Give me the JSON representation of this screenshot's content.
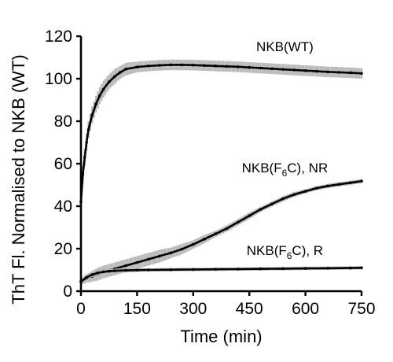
{
  "chart_data": {
    "type": "line",
    "xlabel": "Time (min)",
    "ylabel": "ThT Fl. Normalised to NKB (WT)",
    "xlim": [
      0,
      750
    ],
    "ylim": [
      0,
      120
    ],
    "xticks": [
      0,
      150,
      300,
      450,
      600,
      750
    ],
    "yticks": [
      0,
      20,
      40,
      60,
      80,
      100,
      120
    ],
    "grid": false,
    "legend": "inline labels beside each curve",
    "series": [
      {
        "name": "NKB(WT)",
        "label_main": "NKB(WT)",
        "label_sub": "",
        "label_tail": "",
        "label_at": [
          545,
          113
        ],
        "x": [
          0,
          5,
          10,
          15,
          20,
          30,
          40,
          50,
          60,
          75,
          90,
          105,
          120,
          150,
          180,
          210,
          240,
          270,
          300,
          330,
          360,
          390,
          420,
          450,
          480,
          510,
          540,
          570,
          600,
          630,
          660,
          690,
          720,
          750
        ],
        "y": [
          42,
          55,
          63,
          70,
          76,
          83,
          88,
          92,
          95,
          98.5,
          101,
          103,
          104.5,
          105.5,
          106,
          106.3,
          106.5,
          106.5,
          106.4,
          106.2,
          106,
          105.8,
          105.6,
          105.3,
          105,
          104.7,
          104.4,
          104.1,
          103.8,
          103.5,
          103.2,
          103,
          102.8,
          102.5
        ],
        "err": [
          3,
          4,
          4,
          4,
          4,
          4,
          4,
          4,
          4,
          3.5,
          3.5,
          3,
          3,
          2.5,
          2.5,
          2.5,
          2.5,
          2.5,
          2.5,
          2.5,
          2.5,
          2.5,
          2.5,
          2.5,
          2.5,
          2.5,
          2.5,
          2.5,
          2.5,
          2.5,
          2.5,
          2.5,
          2.5,
          2.5
        ]
      },
      {
        "name": "NKB(F6C), NR",
        "label_main": "NKB(F",
        "label_sub": "6",
        "label_tail": "C), NR",
        "label_at": [
          545,
          56
        ],
        "x": [
          0,
          15,
          30,
          45,
          60,
          90,
          120,
          150,
          180,
          210,
          240,
          270,
          300,
          330,
          360,
          390,
          420,
          450,
          480,
          510,
          540,
          570,
          600,
          630,
          660,
          690,
          720,
          750
        ],
        "y": [
          4.5,
          6,
          7,
          8,
          9,
          10.5,
          12,
          13.5,
          15,
          16.5,
          18,
          19.8,
          22,
          24.5,
          27,
          29.5,
          32.5,
          35.5,
          38.5,
          41,
          43.5,
          45.5,
          47,
          48.5,
          49.5,
          50.3,
          51,
          51.8
        ],
        "err": [
          1.5,
          2,
          2.5,
          3,
          3,
          3,
          3,
          3,
          3,
          3,
          2.5,
          2.5,
          2,
          2,
          1.5,
          1.5,
          1.5,
          1.5,
          1.2,
          1.2,
          1.2,
          1.2,
          1,
          1,
          1,
          1,
          1,
          1
        ]
      },
      {
        "name": "NKB(F6C), R",
        "label_main": "NKB(F",
        "label_sub": "6",
        "label_tail": "C), R",
        "label_at": [
          545,
          17
        ],
        "x": [
          0,
          15,
          30,
          45,
          60,
          75,
          90,
          120,
          150,
          180,
          240,
          300,
          360,
          420,
          480,
          540,
          600,
          660,
          720,
          750
        ],
        "y": [
          4.5,
          6.5,
          7.8,
          8.6,
          9.1,
          9.4,
          9.6,
          9.8,
          9.9,
          10,
          10.1,
          10.2,
          10.3,
          10.4,
          10.5,
          10.6,
          10.7,
          10.8,
          10.9,
          11
        ],
        "err": [
          1,
          1.2,
          1.2,
          1.2,
          1.2,
          1,
          1,
          1,
          0.8,
          0.8,
          0.8,
          0.8,
          0.8,
          0.8,
          0.8,
          0.8,
          0.8,
          0.8,
          0.8,
          0.8
        ]
      }
    ]
  }
}
